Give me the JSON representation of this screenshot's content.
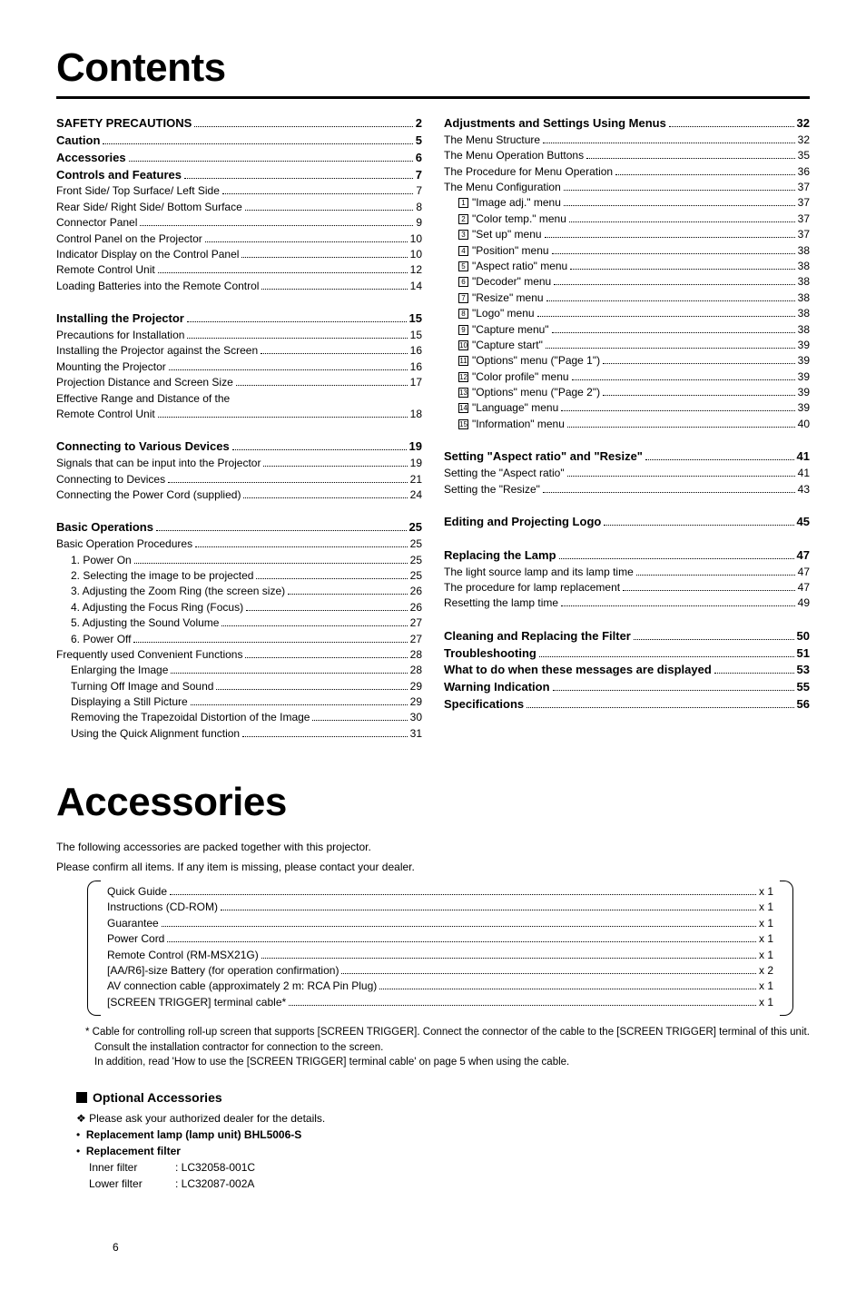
{
  "titles": {
    "contents": "Contents",
    "accessories": "Accessories"
  },
  "toc_left": [
    {
      "type": "header",
      "label": "SAFETY PRECAUTIONS",
      "page": "2"
    },
    {
      "type": "header",
      "label": "Caution",
      "page": "5"
    },
    {
      "type": "header",
      "label": "Accessories",
      "page": "6"
    },
    {
      "type": "header",
      "label": "Controls and Features",
      "page": "7"
    },
    {
      "type": "item",
      "label": "Front Side/ Top Surface/ Left Side",
      "page": "7"
    },
    {
      "type": "item",
      "label": "Rear Side/ Right Side/ Bottom Surface",
      "page": "8"
    },
    {
      "type": "item",
      "label": "Connector Panel",
      "page": "9"
    },
    {
      "type": "item",
      "label": "Control Panel on the Projector",
      "page": "10"
    },
    {
      "type": "item",
      "label": "Indicator Display on the Control Panel",
      "page": "10"
    },
    {
      "type": "item",
      "label": "Remote Control Unit",
      "page": "12"
    },
    {
      "type": "item",
      "label": "Loading Batteries into the Remote Control",
      "page": "14"
    },
    {
      "type": "gap"
    },
    {
      "type": "header",
      "label": "Installing the Projector",
      "page": "15"
    },
    {
      "type": "item",
      "label": "Precautions for Installation",
      "page": "15"
    },
    {
      "type": "item",
      "label": "Installing the Projector against the Screen",
      "page": "16"
    },
    {
      "type": "item",
      "label": "Mounting the Projector",
      "page": "16"
    },
    {
      "type": "item",
      "label": "Projection Distance and Screen Size",
      "page": "17"
    },
    {
      "type": "wrap",
      "label": "Effective Range and Distance of the"
    },
    {
      "type": "item",
      "label": "Remote Control Unit",
      "page": "18"
    },
    {
      "type": "gap"
    },
    {
      "type": "header",
      "label": "Connecting to Various Devices",
      "page": "19"
    },
    {
      "type": "item",
      "label": "Signals that can be input into the Projector",
      "page": "19"
    },
    {
      "type": "item",
      "label": "Connecting to Devices",
      "page": "21"
    },
    {
      "type": "item",
      "label": "Connecting the Power Cord (supplied)",
      "page": "24"
    },
    {
      "type": "gap"
    },
    {
      "type": "header",
      "label": "Basic Operations",
      "page": "25"
    },
    {
      "type": "item",
      "label": "Basic Operation Procedures",
      "page": "25"
    },
    {
      "type": "item",
      "indent": 1,
      "label": "1. Power On",
      "page": "25"
    },
    {
      "type": "item",
      "indent": 1,
      "label": "2. Selecting the image to be projected",
      "page": "25"
    },
    {
      "type": "item",
      "indent": 1,
      "label": "3. Adjusting the Zoom Ring (the screen size)",
      "page": "26"
    },
    {
      "type": "item",
      "indent": 1,
      "label": "4. Adjusting the Focus Ring (Focus)",
      "page": "26"
    },
    {
      "type": "item",
      "indent": 1,
      "label": "5. Adjusting the Sound Volume",
      "page": "27"
    },
    {
      "type": "item",
      "indent": 1,
      "label": "6. Power Off",
      "page": "27"
    },
    {
      "type": "item",
      "label": "Frequently used Convenient Functions",
      "page": "28"
    },
    {
      "type": "item",
      "indent": 1,
      "label": "Enlarging the Image",
      "page": "28"
    },
    {
      "type": "item",
      "indent": 1,
      "label": "Turning Off Image and Sound",
      "page": "29"
    },
    {
      "type": "item",
      "indent": 1,
      "label": "Displaying a Still Picture",
      "page": "29"
    },
    {
      "type": "item",
      "indent": 1,
      "label": "Removing the Trapezoidal Distortion of the Image",
      "page": "30"
    },
    {
      "type": "item",
      "indent": 1,
      "label": "Using the Quick Alignment function",
      "page": "31"
    }
  ],
  "toc_right": [
    {
      "type": "header",
      "label": "Adjustments and Settings Using Menus",
      "page": "32"
    },
    {
      "type": "item",
      "label": "The Menu Structure",
      "page": "32"
    },
    {
      "type": "item",
      "label": "The Menu Operation Buttons",
      "page": "35"
    },
    {
      "type": "item",
      "label": "The Procedure for Menu Operation",
      "page": "36"
    },
    {
      "type": "item",
      "label": "The Menu Configuration",
      "page": "37"
    },
    {
      "type": "numitem",
      "num": "1",
      "label": "\"Image adj.\" menu",
      "page": "37"
    },
    {
      "type": "numitem",
      "num": "2",
      "label": "\"Color temp.\" menu",
      "page": "37"
    },
    {
      "type": "numitem",
      "num": "3",
      "label": "\"Set up\" menu",
      "page": "37"
    },
    {
      "type": "numitem",
      "num": "4",
      "label": "\"Position\" menu",
      "page": "38"
    },
    {
      "type": "numitem",
      "num": "5",
      "label": "\"Aspect ratio\" menu",
      "page": "38"
    },
    {
      "type": "numitem",
      "num": "6",
      "label": "\"Decoder\" menu",
      "page": "38"
    },
    {
      "type": "numitem",
      "num": "7",
      "label": "\"Resize\" menu",
      "page": "38"
    },
    {
      "type": "numitem",
      "num": "8",
      "label": "\"Logo\" menu",
      "page": "38"
    },
    {
      "type": "numitem",
      "num": "9",
      "label": "\"Capture menu\"",
      "page": "38"
    },
    {
      "type": "numitem",
      "num": "10",
      "label": "\"Capture start\"",
      "page": "39"
    },
    {
      "type": "numitem",
      "num": "11",
      "label": "\"Options\" menu (\"Page 1\")",
      "page": "39"
    },
    {
      "type": "numitem",
      "num": "12",
      "label": "\"Color profile\" menu",
      "page": "39"
    },
    {
      "type": "numitem",
      "num": "13",
      "label": "\"Options\" menu (\"Page 2\")",
      "page": "39"
    },
    {
      "type": "numitem",
      "num": "14",
      "label": "\"Language\" menu",
      "page": "39"
    },
    {
      "type": "numitem",
      "num": "15",
      "label": "\"Information\" menu",
      "page": "40"
    },
    {
      "type": "gap"
    },
    {
      "type": "header",
      "label": "Setting \"Aspect ratio\" and \"Resize\"",
      "page": "41"
    },
    {
      "type": "item",
      "label": "Setting the \"Aspect ratio\"",
      "page": "41"
    },
    {
      "type": "item",
      "label": "Setting the \"Resize\"",
      "page": "43"
    },
    {
      "type": "gap"
    },
    {
      "type": "header",
      "label": "Editing and Projecting Logo",
      "page": "45"
    },
    {
      "type": "gap"
    },
    {
      "type": "header",
      "label": "Replacing the Lamp",
      "page": "47"
    },
    {
      "type": "item",
      "label": "The light source lamp and its lamp time",
      "page": "47"
    },
    {
      "type": "item",
      "label": "The procedure for lamp replacement",
      "page": "47"
    },
    {
      "type": "item",
      "label": "Resetting the lamp time",
      "page": "49"
    },
    {
      "type": "gap"
    },
    {
      "type": "header",
      "label": "Cleaning and Replacing the Filter",
      "page": "50"
    },
    {
      "type": "header",
      "label": "Troubleshooting",
      "page": "51"
    },
    {
      "type": "header",
      "label": "What to do when these messages are displayed",
      "page": "53"
    },
    {
      "type": "header",
      "label": "Warning Indication",
      "page": "55"
    },
    {
      "type": "header",
      "label": "Specifications",
      "page": "56"
    }
  ],
  "acc_intro": [
    "The following accessories are packed together with this projector.",
    "Please confirm all items. If any item is missing, please contact your dealer."
  ],
  "acc_list": [
    {
      "label": "Quick Guide",
      "qty": "x 1"
    },
    {
      "label": "Instructions (CD-ROM)",
      "qty": "x 1"
    },
    {
      "label": "Guarantee",
      "qty": "x 1"
    },
    {
      "label": "Power Cord",
      "qty": "x 1"
    },
    {
      "label": "Remote Control (RM-MSX21G)",
      "qty": "x 1"
    },
    {
      "label": "[AA/R6]-size Battery (for operation confirmation)",
      "qty": "x 2"
    },
    {
      "label": "AV connection cable (approximately 2 m: RCA Pin Plug)",
      "qty": "x 1"
    },
    {
      "label": "[SCREEN TRIGGER] terminal cable*",
      "qty": "x 1"
    }
  ],
  "footnote": "*  Cable for controlling roll-up screen that supports [SCREEN TRIGGER]. Connect the connector of the cable to the [SCREEN TRIGGER] terminal of this unit. Consult the installation contractor for connection to the screen.\nIn addition, read 'How to use the [SCREEN TRIGGER] terminal cable' on page 5 when using the cable.",
  "optional": {
    "header": "Optional Accessories",
    "ask": "❖ Please ask your authorized dealer for the details.",
    "lamp": "Replacement lamp (lamp unit)  BHL5006-S",
    "filter_header": "Replacement filter",
    "filters": [
      {
        "name": "Inner filter",
        "code": ": LC32058-001C"
      },
      {
        "name": "Lower filter",
        "code": ": LC32087-002A"
      }
    ]
  },
  "page_number": "6"
}
